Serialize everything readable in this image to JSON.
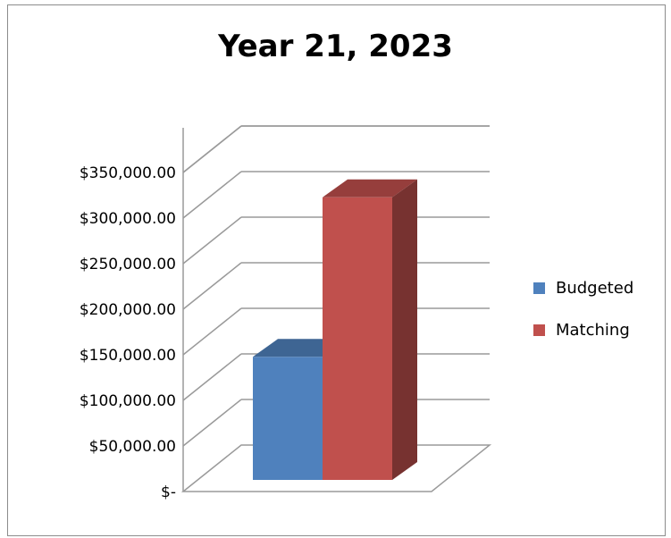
{
  "chart_data": {
    "type": "bar",
    "title": "Year 21, 2023",
    "categories": [
      ""
    ],
    "series": [
      {
        "name": "Budgeted",
        "values": [
          135000
        ],
        "color": "#4f81bd"
      },
      {
        "name": "Matching",
        "values": [
          310000
        ],
        "color": "#c0504d"
      }
    ],
    "yticks": [
      "$-",
      "$50,000.00",
      "$100,000.00",
      "$150,000.00",
      "$200,000.00",
      "$250,000.00",
      "$300,000.00",
      "$350,000.00"
    ],
    "ylim": [
      0,
      350000
    ],
    "grid": true,
    "legend": "right"
  }
}
